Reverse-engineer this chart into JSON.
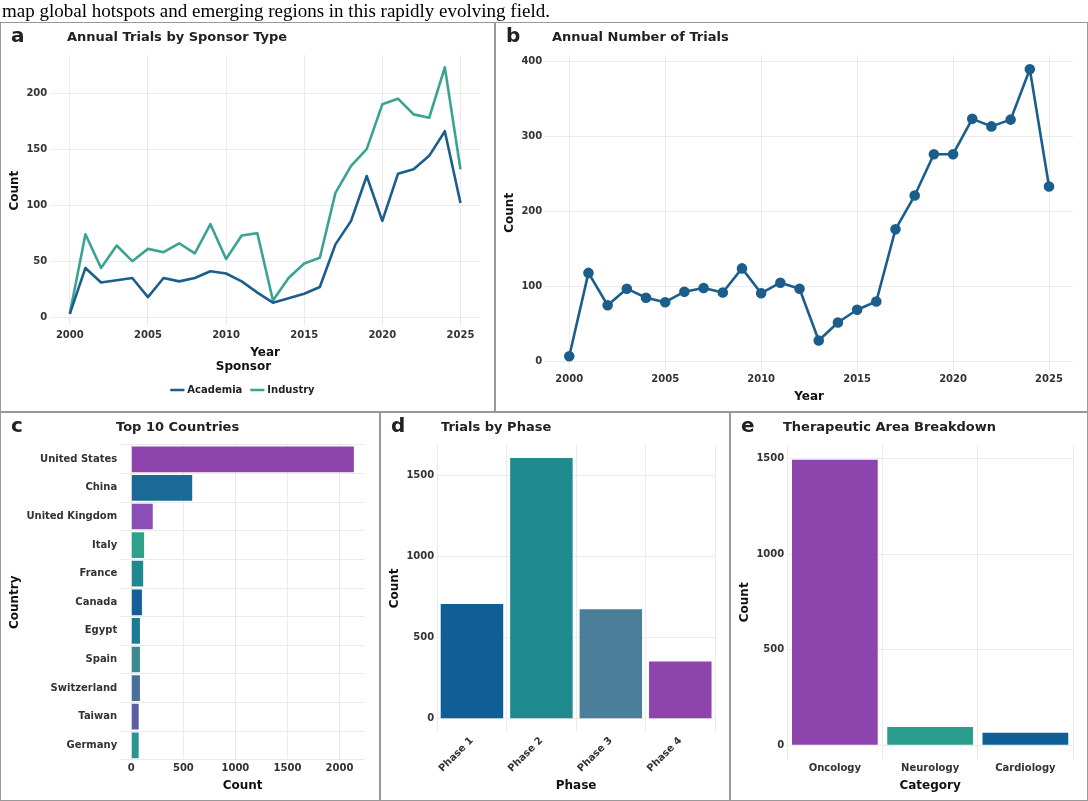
{
  "chart_data": [
    {
      "type": "line",
      "title": "Annual Trials by Sponsor Type",
      "xlabel": "Year",
      "ylabel": "Count",
      "legend_title": "Sponsor",
      "legend": "bottom",
      "grid": true,
      "marker": "none",
      "annotations": [
        "a",
        "map global hotspots and emerging regions in this rapidly evolving field."
      ],
      "x": [
        2000,
        2001,
        2002,
        2003,
        2004,
        2005,
        2006,
        2007,
        2008,
        2009,
        2010,
        2011,
        2012,
        2013,
        2014,
        2015,
        2016,
        2017,
        2018,
        2019,
        2020,
        2021,
        2022,
        2023,
        2024,
        2025
      ],
      "xlim": [
        1998.75,
        2026.25
      ],
      "xticks": [
        2000,
        2005,
        2010,
        2015,
        2020,
        2025
      ],
      "ylim": [
        -8,
        234
      ],
      "yticks": [
        0,
        50,
        100,
        150,
        200
      ],
      "series": [
        {
          "name": "Academia",
          "color": "#1b5e8c",
          "values": [
            3,
            44,
            31,
            33,
            35,
            18,
            35,
            32,
            35,
            41,
            39,
            32,
            22,
            13,
            17,
            21,
            27,
            65,
            86,
            126,
            86,
            128,
            132,
            144,
            166,
            102
          ]
        },
        {
          "name": "Industry",
          "color": "#3aa394",
          "values": [
            3,
            74,
            44,
            64,
            50,
            61,
            58,
            66,
            57,
            83,
            52,
            73,
            75,
            15,
            35,
            48,
            53,
            111,
            135,
            150,
            190,
            195,
            181,
            178,
            223,
            132
          ]
        }
      ]
    },
    {
      "type": "line",
      "title": "Annual Number of Trials",
      "xlabel": "Year",
      "ylabel": "Count",
      "grid": true,
      "marker": "circle",
      "annotations": [
        "b"
      ],
      "x": [
        2000,
        2001,
        2002,
        2003,
        2004,
        2005,
        2006,
        2007,
        2008,
        2009,
        2010,
        2011,
        2012,
        2013,
        2014,
        2015,
        2016,
        2017,
        2018,
        2019,
        2020,
        2021,
        2022,
        2023,
        2024,
        2025
      ],
      "xlim": [
        1998.75,
        2026.25
      ],
      "xticks": [
        2000,
        2005,
        2010,
        2015,
        2020,
        2025
      ],
      "ylim": [
        -12,
        408
      ],
      "yticks": [
        0,
        100,
        200,
        300,
        400
      ],
      "series": [
        {
          "color": "#1b5e8c",
          "values": [
            7,
            118,
            75,
            97,
            85,
            79,
            93,
            98,
            92,
            124,
            91,
            105,
            97,
            28,
            52,
            69,
            80,
            176,
            221,
            276,
            276,
            323,
            313,
            322,
            389,
            233
          ]
        }
      ]
    },
    {
      "type": "bar",
      "orientation": "horizontal",
      "title": "Top 10 Countries",
      "xlabel": "Count",
      "ylabel": "Country",
      "grid": true,
      "annotations": [
        "c"
      ],
      "categories": [
        "United States",
        "China",
        "United Kingdom",
        "Italy",
        "France",
        "Canada",
        "Egypt",
        "Spain",
        "Switzerland",
        "Taiwan",
        "Germany"
      ],
      "values": [
        2138,
        585,
        206,
        123,
        114,
        102,
        83,
        83,
        83,
        71,
        71
      ],
      "colors": [
        "#8e44ad",
        "#1a6a96",
        "#8a4fb5",
        "#2fa08a",
        "#21888f",
        "#125f99",
        "#1d7a96",
        "#3b8a90",
        "#4a6f9a",
        "#5b5ea0",
        "#2a9590"
      ],
      "xlim": [
        -107,
        2245
      ],
      "xticks": [
        0,
        500,
        1000,
        1500,
        2000
      ]
    },
    {
      "type": "bar",
      "title": "Trials by Phase",
      "xlabel": "Phase",
      "ylabel": "Count",
      "grid": true,
      "annotations": [
        "d"
      ],
      "categories": [
        "Phase 1",
        "Phase 2",
        "Phase 3",
        "Phase 4"
      ],
      "values": [
        708,
        1610,
        676,
        354
      ],
      "colors": [
        "#0f5e96",
        "#1f8a90",
        "#4b7f99",
        "#8e44ad"
      ],
      "ylim": [
        -80,
        1690
      ],
      "yticks": [
        0,
        500,
        1000,
        1500
      ]
    },
    {
      "type": "bar",
      "title": "Therapeutic Area Breakdown",
      "xlabel": "Category",
      "ylabel": "Count",
      "grid": true,
      "annotations": [
        "e"
      ],
      "categories": [
        "Oncology",
        "Neurology",
        "Cardiology"
      ],
      "values": [
        1493,
        95,
        65
      ],
      "colors": [
        "#8e44ad",
        "#2a9d8f",
        "#0f5e96"
      ],
      "ylim": [
        -75,
        1570
      ],
      "yticks": [
        0,
        500,
        1000,
        1500
      ]
    }
  ]
}
